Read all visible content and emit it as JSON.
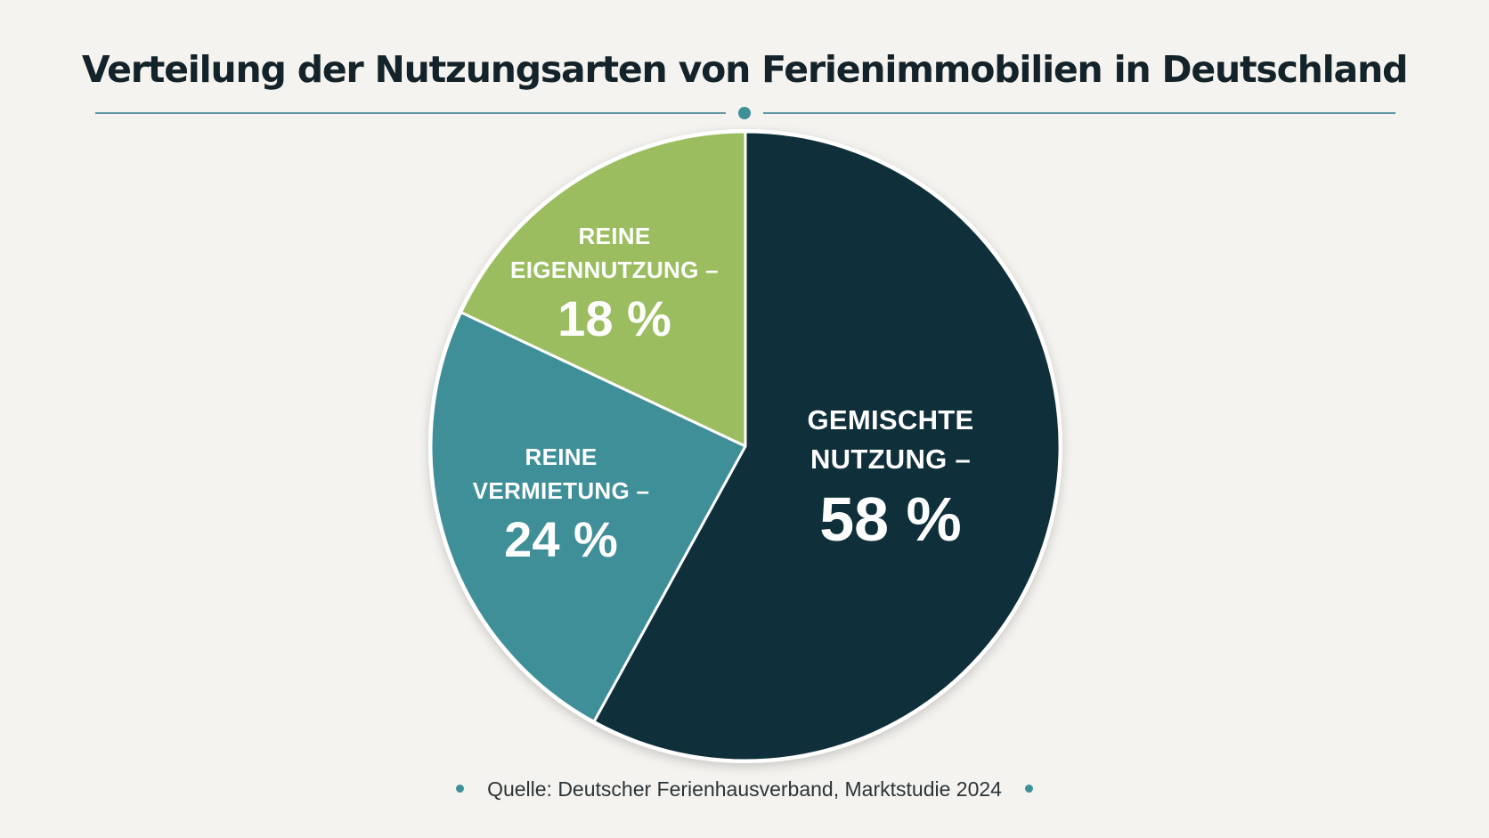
{
  "chart_data": {
    "type": "pie",
    "title": "Verteilung der Nutzungsarten von Ferienimmobilien in Deutschland",
    "slices": [
      {
        "name_line1": "GEMISCHTE",
        "name_line2": "NUTZUNG –",
        "value": 58,
        "value_label": "58 %",
        "color": "#0f2f3a"
      },
      {
        "name_line1": "REINE",
        "name_line2": "VERMIETUNG –",
        "value": 24,
        "value_label": "24 %",
        "color": "#3f8f99"
      },
      {
        "name_line1": "REINE",
        "name_line2": "EIGENNUTZUNG –",
        "value": 18,
        "value_label": "18 %",
        "color": "#9bbd5f"
      }
    ],
    "start_angle": "12 o'clock",
    "direction": "clockwise",
    "legend": "none",
    "source": "Quelle: Deutscher Ferienhausverband, Marktstudie 2024"
  },
  "colors": {
    "background": "#f4f3ef",
    "title": "#14232a",
    "accent": "#3f8f99",
    "divider": "#5d96a4"
  }
}
